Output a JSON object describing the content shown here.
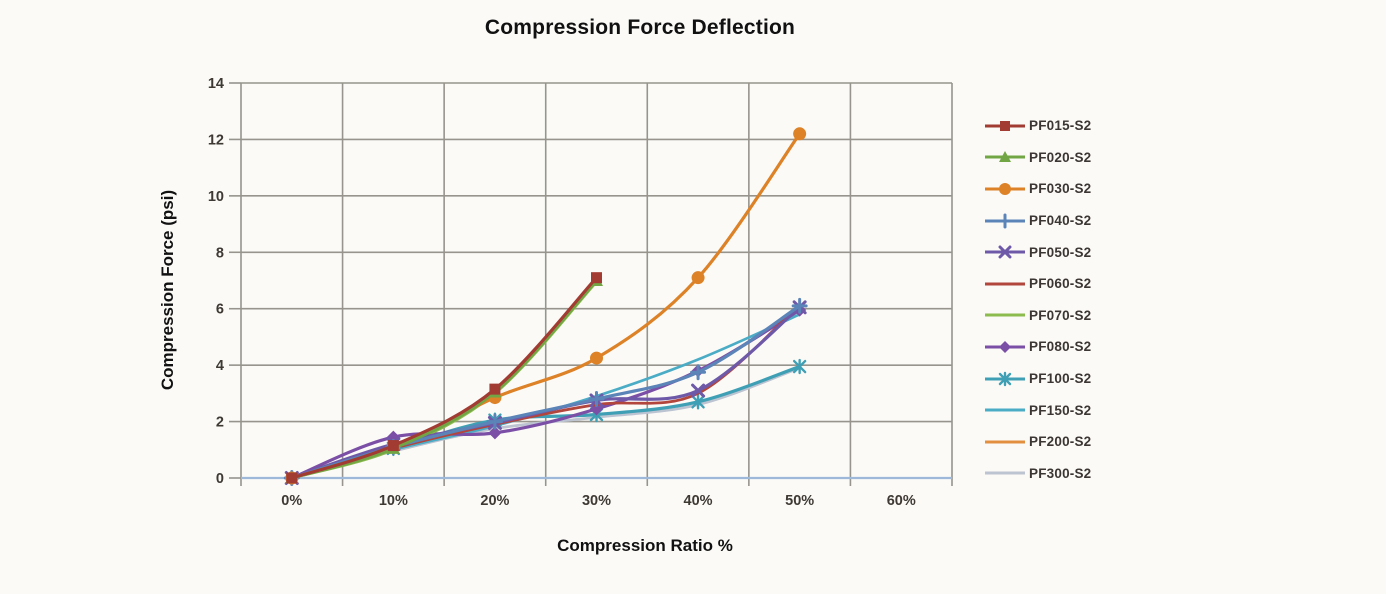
{
  "page": {
    "background": "#FBFAF7"
  },
  "chart_data": {
    "type": "line",
    "title": "Compression Force Deflection",
    "xlabel": "Compression Ratio %",
    "ylabel": "Compression Force  (psi)",
    "x_tick_labels": [
      "0%",
      "10%",
      "20%",
      "30%",
      "40%",
      "50%",
      "60%"
    ],
    "y_ticks": [
      0,
      2,
      4,
      6,
      8,
      10,
      12,
      14
    ],
    "ylim": [
      0,
      14
    ],
    "grid": true,
    "legend_position": "right",
    "colors": {
      "grid": "#96948C",
      "zero_line": "#9DB8D9",
      "tick_text": "#3E3933",
      "title_text": "#111111"
    },
    "series": [
      {
        "name": "PF015-S2",
        "color": "#A23B32",
        "marker": "square",
        "values": [
          0,
          1.15,
          3.15,
          7.1
        ]
      },
      {
        "name": "PF020-S2",
        "color": "#72A644",
        "marker": "triangle",
        "values": [
          0,
          1.05,
          3.05,
          7.0
        ]
      },
      {
        "name": "PF030-S2",
        "color": "#DD8227",
        "marker": "circle",
        "values": [
          0,
          1.1,
          2.85,
          4.25,
          7.1,
          12.2
        ]
      },
      {
        "name": "PF040-S2",
        "color": "#5B84B8",
        "marker": "plus",
        "values": [
          0,
          1.1,
          2.0,
          2.8,
          3.75,
          6.1
        ]
      },
      {
        "name": "PF050-S2",
        "color": "#6E59A8",
        "marker": "x",
        "values": [
          0,
          1.2,
          1.95,
          2.75,
          3.1,
          6.05
        ]
      },
      {
        "name": "PF060-S2",
        "color": "#B2453C",
        "marker": "none",
        "values": [
          0,
          1.05,
          1.9,
          2.6,
          3.0,
          6.15
        ]
      },
      {
        "name": "PF070-S2",
        "color": "#8CBB4E",
        "marker": "none",
        "values": [
          0,
          1.0,
          3.0,
          6.95
        ]
      },
      {
        "name": "PF080-S2",
        "color": "#7B4FA6",
        "marker": "diamond",
        "values": [
          0,
          1.45,
          1.6,
          2.45,
          3.8,
          5.95
        ]
      },
      {
        "name": "PF100-S2",
        "color": "#3FA0B5",
        "marker": "asterisk",
        "values": [
          0,
          1.05,
          2.05,
          2.25,
          2.7,
          3.95
        ]
      },
      {
        "name": "PF150-S2",
        "color": "#4BACC6",
        "marker": "none",
        "values": [
          0,
          1.0,
          1.85,
          2.9,
          4.2,
          5.8
        ]
      },
      {
        "name": "PF200-S2",
        "color": "#E29040",
        "marker": "none",
        "values": [
          0,
          1.1,
          2.85,
          4.25,
          7.1,
          12.2
        ]
      },
      {
        "name": "PF300-S2",
        "color": "#BCC3D1",
        "marker": "none",
        "values": [
          0,
          0.95,
          1.75,
          2.15,
          2.6,
          3.9
        ]
      }
    ]
  }
}
